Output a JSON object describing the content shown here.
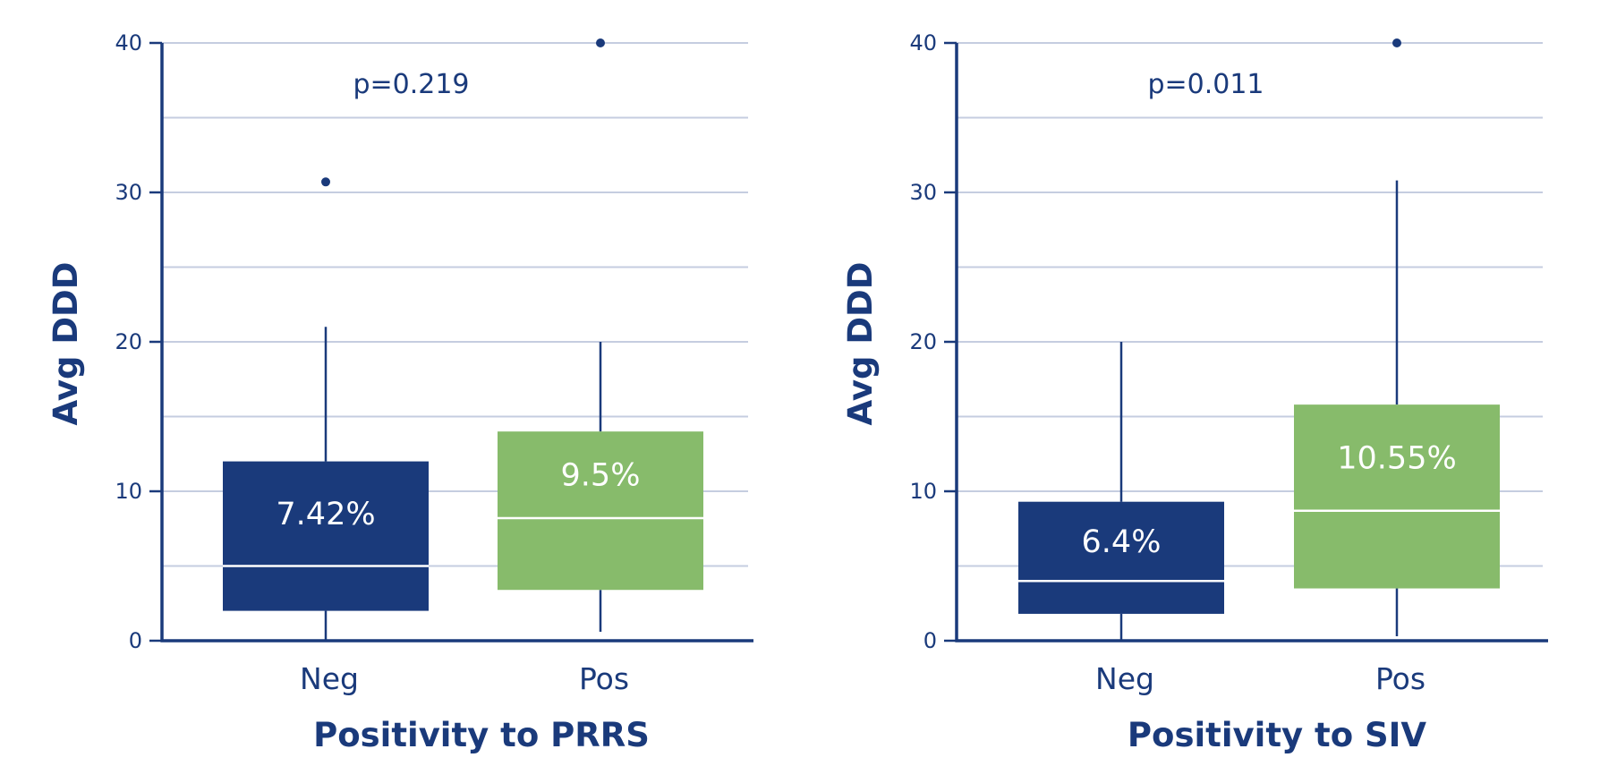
{
  "colors": {
    "navy": "#1a3a7b",
    "green": "#87bb6b",
    "grid": "#c5cde0",
    "median": "#ffffff"
  },
  "chart_data": [
    {
      "type": "box",
      "title": "",
      "xlabel": "Positivity to PRRS",
      "ylabel": "Avg DDD",
      "ylim": [
        0,
        40
      ],
      "yticks": [
        0,
        10,
        20,
        30,
        40
      ],
      "grid": true,
      "annotation": "p=0.219",
      "categories": [
        "Neg",
        "Pos"
      ],
      "boxes": [
        {
          "category": "Neg",
          "whisker_low": 0,
          "q1": 2,
          "median": 5,
          "q3": 12,
          "whisker_high": 21,
          "outliers": [
            30.7
          ],
          "label": "7.42%",
          "color": "#1a3a7b"
        },
        {
          "category": "Pos",
          "whisker_low": 0.6,
          "q1": 3.4,
          "median": 8.2,
          "q3": 14,
          "whisker_high": 20,
          "outliers": [
            40
          ],
          "label": "9.5%",
          "color": "#87bb6b"
        }
      ]
    },
    {
      "type": "box",
      "title": "",
      "xlabel": "Positivity to SIV",
      "ylabel": "Avg DDD",
      "ylim": [
        0,
        40
      ],
      "yticks": [
        0,
        10,
        20,
        30,
        40
      ],
      "grid": true,
      "annotation": "p=0.011",
      "categories": [
        "Neg",
        "Pos"
      ],
      "boxes": [
        {
          "category": "Neg",
          "whisker_low": 0,
          "q1": 1.8,
          "median": 4,
          "q3": 9.3,
          "whisker_high": 20,
          "outliers": [],
          "label": "6.4%",
          "color": "#1a3a7b"
        },
        {
          "category": "Pos",
          "whisker_low": 0.3,
          "q1": 3.5,
          "median": 8.7,
          "q3": 15.8,
          "whisker_high": 30.8,
          "outliers": [
            40
          ],
          "label": "10.55%",
          "color": "#87bb6b"
        }
      ]
    }
  ]
}
